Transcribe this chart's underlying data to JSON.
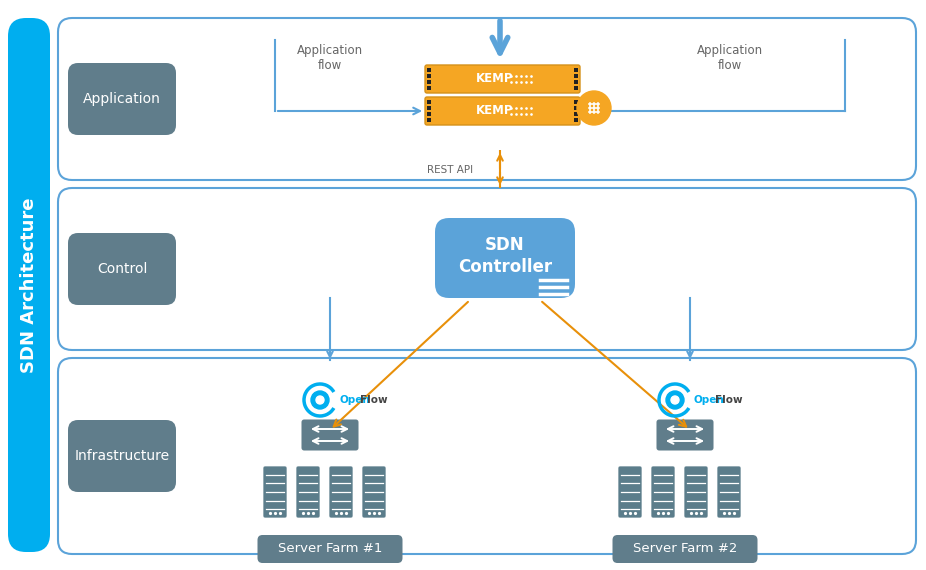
{
  "bg_color": "#ffffff",
  "sdn_bar_color": "#00AEEF",
  "sdn_bar_text": "SDN Architecture",
  "layer_bg_color": "#607D8B",
  "panel_border_color": "#5BA3D9",
  "app_layer_label": "Application",
  "ctrl_layer_label": "Control",
  "infra_layer_label": "Infrastructure",
  "kemp_color": "#F5A623",
  "kemp_border_color": "#D4911A",
  "sdn_ctrl_color": "#5BA3D9",
  "openflow_color": "#00AEEF",
  "switch_color": "#607D8B",
  "server_color": "#5B7D8B",
  "server_farm_box_color": "#607D8B",
  "arrow_blue_color": "#5BA3D9",
  "arrow_orange_color": "#E8900A",
  "rest_api_label": "REST API",
  "app_flow_label": "Application\nflow",
  "server_farm1_label": "Server Farm #1",
  "server_farm2_label": "Server Farm #2",
  "fig_w": 9.26,
  "fig_h": 5.7,
  "dpi": 100
}
